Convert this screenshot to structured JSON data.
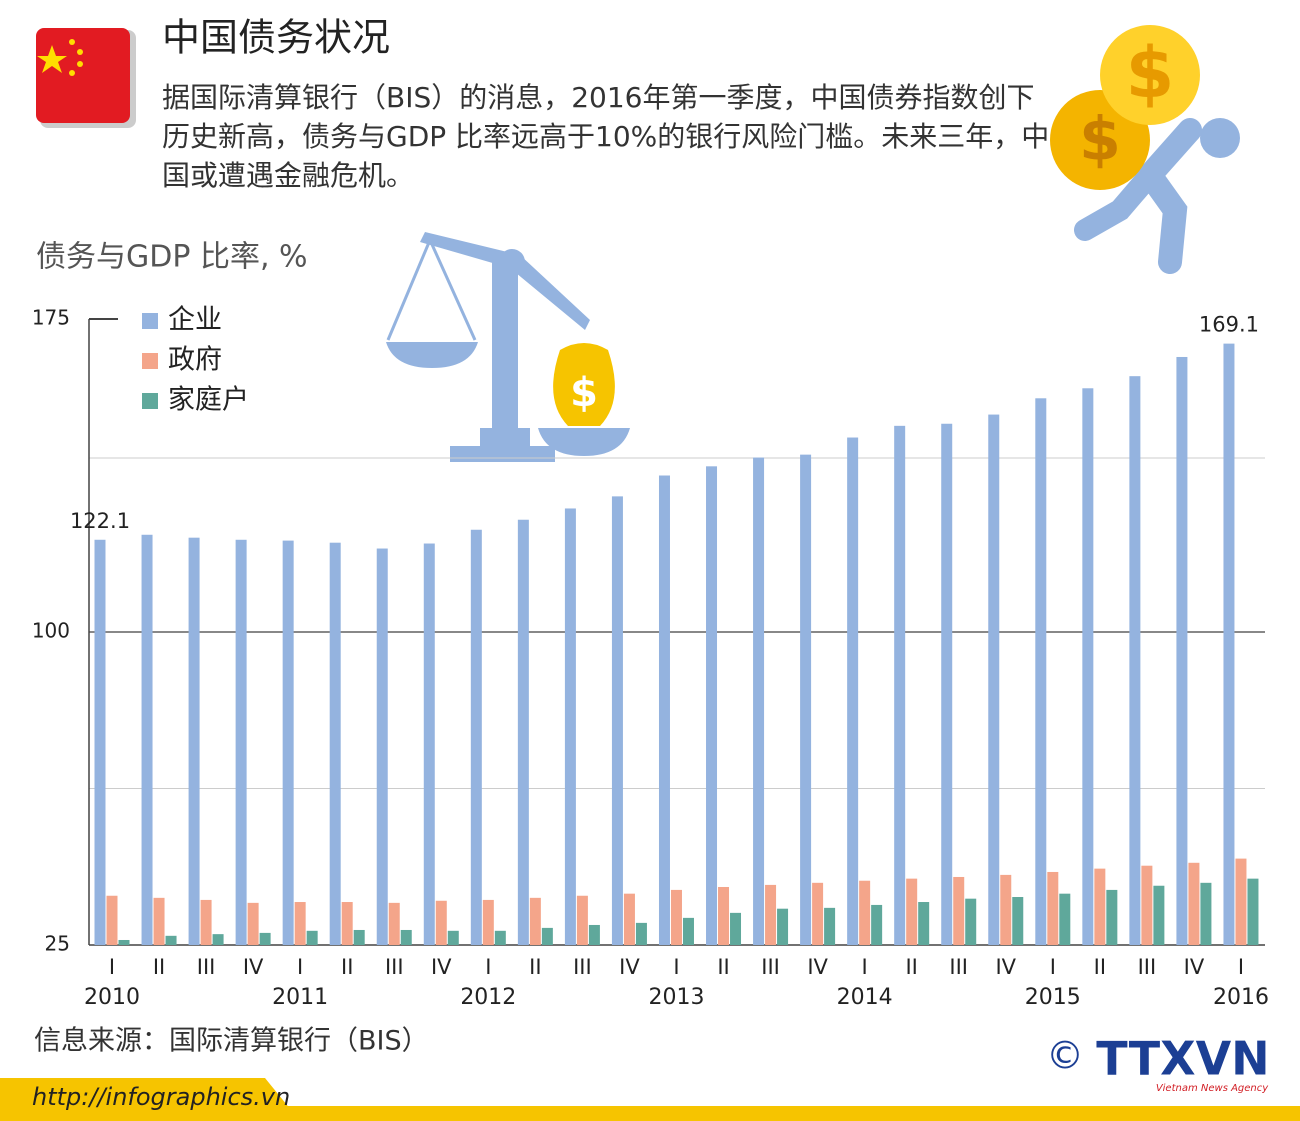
{
  "header": {
    "title": "中国债务状况",
    "subtitle": "据国际清算银行（BIS）的消息，2016年第一季度，中国债券指数创下历史新高，债务与GDP 比率远高于10%的银行风险门槛。未来三年，中国或遭遇金融危机。"
  },
  "chart_data": {
    "type": "bar",
    "y_label": "债务与GDP 比率, %",
    "categories": [
      "I",
      "II",
      "III",
      "IV",
      "I",
      "II",
      "III",
      "IV",
      "I",
      "II",
      "III",
      "IV",
      "I",
      "II",
      "III",
      "IV",
      "I",
      "II",
      "III",
      "IV",
      "I",
      "II",
      "III",
      "IV",
      "I"
    ],
    "year_labels": [
      "2010",
      null,
      null,
      null,
      "2011",
      null,
      null,
      null,
      "2012",
      null,
      null,
      null,
      "2013",
      null,
      null,
      null,
      "2014",
      null,
      null,
      null,
      "2015",
      null,
      null,
      null,
      "2016"
    ],
    "series": [
      {
        "name": "企业",
        "color": "#94b3df",
        "values": [
          122.1,
          123.3,
          122.6,
          122.1,
          121.9,
          121.4,
          120.0,
          121.2,
          124.5,
          126.9,
          129.6,
          132.5,
          137.5,
          139.7,
          141.8,
          142.5,
          146.6,
          149.4,
          149.9,
          152.1,
          156.0,
          158.4,
          161.3,
          165.9,
          169.1
        ]
      },
      {
        "name": "政府",
        "color": "#f4a58a",
        "values": [
          36.8,
          36.3,
          35.8,
          35.1,
          35.3,
          35.3,
          35.1,
          35.6,
          35.8,
          36.3,
          36.8,
          37.3,
          38.2,
          38.9,
          39.4,
          39.9,
          40.4,
          40.9,
          41.3,
          41.8,
          42.5,
          43.3,
          44.0,
          44.7,
          45.7
        ]
      },
      {
        "name": "家庭户",
        "color": "#5fa89b",
        "values": [
          26.2,
          27.2,
          27.6,
          27.9,
          28.4,
          28.6,
          28.6,
          28.4,
          28.4,
          29.1,
          29.8,
          30.3,
          31.5,
          32.7,
          33.7,
          33.9,
          34.6,
          35.3,
          36.1,
          36.5,
          37.3,
          38.2,
          39.2,
          39.9,
          40.9
        ]
      }
    ],
    "ylim": [
      25,
      175
    ],
    "yticks": [
      25,
      100,
      175
    ],
    "minor_grid": [
      62.5,
      141.7
    ],
    "grid": true
  },
  "footer": {
    "source": "信息来源：国际清算银行（BIS）",
    "url": "http://infographics.vn",
    "copyright": "©",
    "logo": "TTXVN",
    "agency": "Vietnam News Agency"
  }
}
